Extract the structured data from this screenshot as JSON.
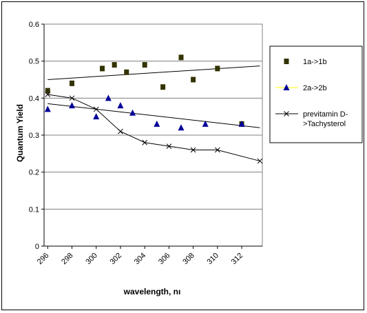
{
  "chart_data": {
    "type": "scatter",
    "title": "",
    "xlabel": "wavelength, nı",
    "ylabel": "Quantum Yield",
    "xlim": [
      295.7,
      313.7
    ],
    "ylim": [
      0,
      0.6
    ],
    "x_ticks": [
      "296",
      "298",
      "300",
      "302",
      "304",
      "306",
      "308",
      "310",
      "312"
    ],
    "y_ticks": [
      "0",
      "0.1",
      "0.2",
      "0.3",
      "0.4",
      "0.5",
      "0.6"
    ],
    "grid": "horizontal",
    "legend_position": "right",
    "series": [
      {
        "name": "1a->1b",
        "marker": "square",
        "color": "#333300",
        "x": [
          296,
          298,
          300.5,
          301.5,
          302.5,
          304,
          305.5,
          307,
          308,
          310,
          312
        ],
        "y": [
          0.42,
          0.44,
          0.48,
          0.49,
          0.47,
          0.49,
          0.43,
          0.51,
          0.45,
          0.48,
          0.33
        ],
        "trendline": {
          "color": "#000000",
          "x": [
            296,
            313.5
          ],
          "y": [
            0.45,
            0.487
          ]
        }
      },
      {
        "name": "2a->2b",
        "marker": "triangle",
        "color": "#000099",
        "x": [
          296,
          298,
          300,
          301,
          302,
          303,
          305,
          307,
          309,
          312
        ],
        "y": [
          0.37,
          0.38,
          0.35,
          0.4,
          0.38,
          0.36,
          0.33,
          0.32,
          0.33,
          0.33
        ],
        "trendline": {
          "color": "#000000",
          "x": [
            296,
            313.5
          ],
          "y": [
            0.385,
            0.32
          ]
        }
      },
      {
        "name": "previtamin D->Tachysterol",
        "legend_lines": [
          "previtamin D-",
          ">Tachysterol"
        ],
        "marker": "x",
        "color": "#000000",
        "x": [
          296,
          298,
          300,
          302,
          304,
          306,
          308,
          310,
          313.5
        ],
        "y": [
          0.41,
          0.4,
          0.37,
          0.31,
          0.28,
          0.27,
          0.26,
          0.26,
          0.23
        ],
        "line": true,
        "line_color": "#000000"
      }
    ]
  }
}
